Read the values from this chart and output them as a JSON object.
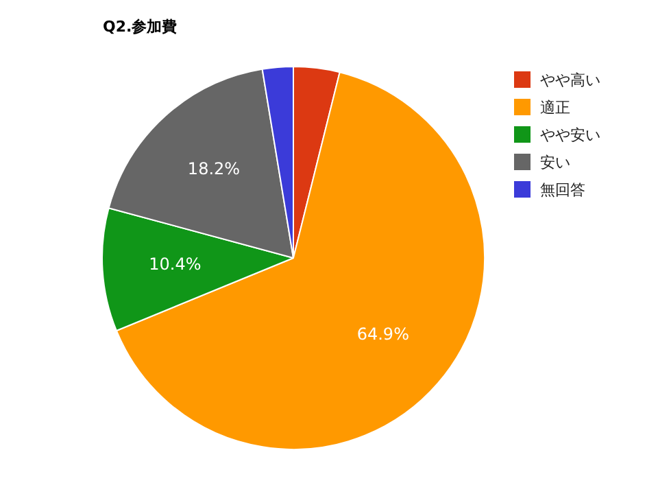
{
  "chart_data": {
    "type": "pie",
    "title": "Q2.参加費",
    "categories": [
      "やや高い",
      "適正",
      "やや安い",
      "安い",
      "無回答"
    ],
    "values": [
      3.9,
      64.9,
      10.4,
      18.2,
      2.6
    ],
    "colors": [
      "#dc3912",
      "#ff9900",
      "#109618",
      "#666666",
      "#3b3bd9"
    ],
    "value_labels": [
      null,
      "64.9%",
      "10.4%",
      "18.2%",
      null
    ],
    "legend": "top right"
  }
}
